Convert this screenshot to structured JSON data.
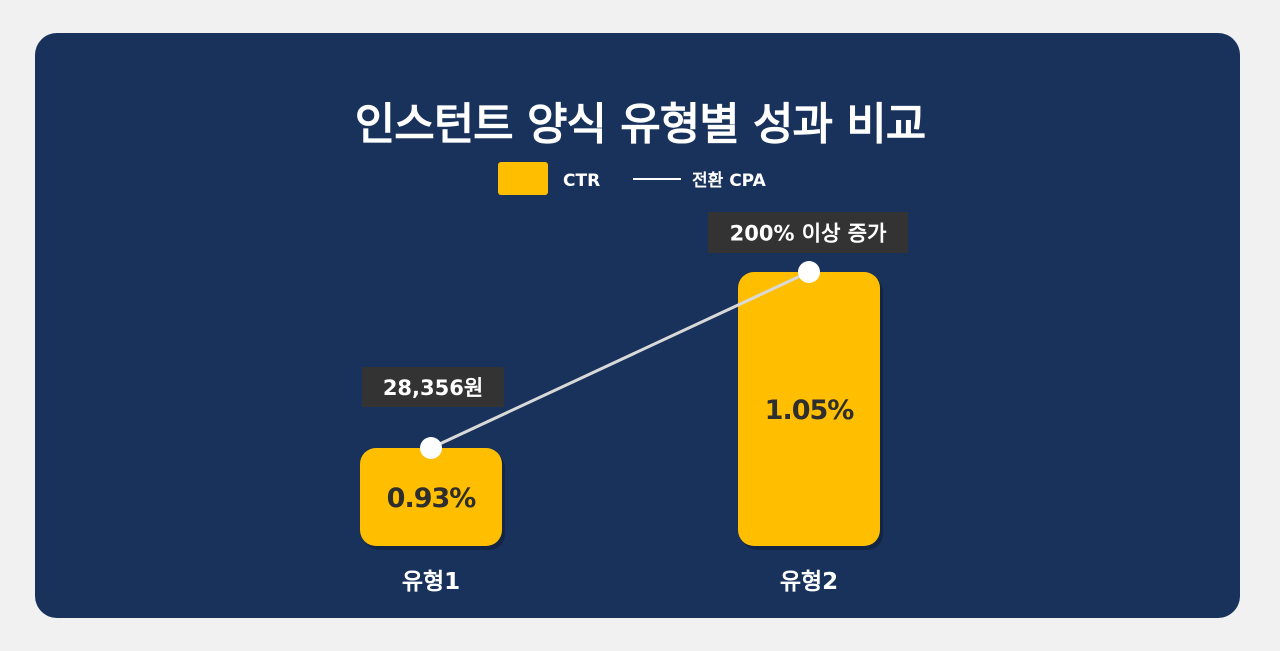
{
  "chart_data": {
    "type": "bar",
    "title": "인스턴트 양식 유형별 성과 비교",
    "categories": [
      "유형1",
      "유형2"
    ],
    "series": [
      {
        "name": "CTR",
        "values": [
          0.93,
          1.05
        ],
        "labels": [
          "0.93%",
          "1.05%"
        ],
        "color": "#ffbf00"
      },
      {
        "name": "전환 CPA",
        "type": "line",
        "annotations": [
          "28,356원",
          "200% 이상 증가"
        ],
        "color": "#d9d9d9"
      }
    ],
    "xlabel": "",
    "ylabel": "",
    "grid": false,
    "legend": "top-center"
  },
  "colors": {
    "page_bg": "#f1f1f1",
    "card_bg": "#18325c",
    "bar": "#ffbf00",
    "label_box": "#333333",
    "line": "#d9d9d9"
  }
}
